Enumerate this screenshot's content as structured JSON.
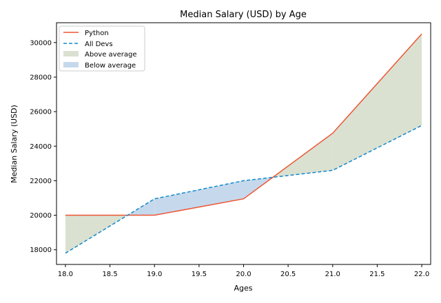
{
  "chart_data": {
    "type": "line",
    "title": "Median Salary (USD) by Age",
    "xlabel": "Ages",
    "ylabel": "Median Salary (USD)",
    "xlim": [
      17.9,
      22.1
    ],
    "ylim": [
      17150,
      31150
    ],
    "x": [
      18,
      19,
      20,
      21,
      22
    ],
    "x_ticks": [
      "18.0",
      "18.5",
      "19.0",
      "19.5",
      "20.0",
      "20.5",
      "21.0",
      "21.5",
      "22.0"
    ],
    "y_ticks": [
      "18000",
      "20000",
      "22000",
      "24000",
      "26000",
      "28000",
      "30000"
    ],
    "series": [
      {
        "name": "Python",
        "values": [
          20000,
          20000,
          20950,
          24750,
          30500
        ],
        "color": "#ee5533",
        "style": "solid"
      },
      {
        "name": "All Devs",
        "values": [
          17800,
          20950,
          22000,
          22600,
          25200
        ],
        "color": "#1188cc",
        "style": "dashed"
      }
    ],
    "fills": [
      {
        "name": "Above average",
        "color": "#dae1d1"
      },
      {
        "name": "Below average",
        "color": "#c6d9ec"
      }
    ],
    "legend_position": "top-left",
    "grid": false
  }
}
